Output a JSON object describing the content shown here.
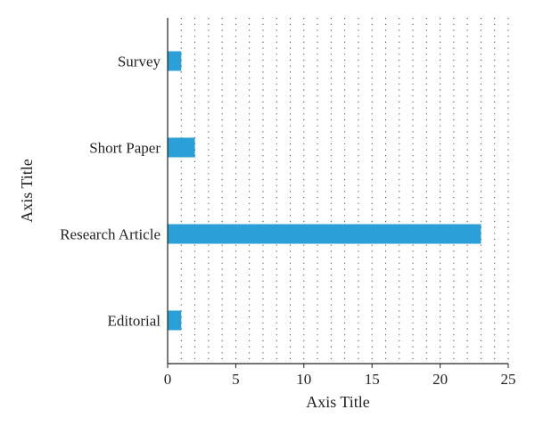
{
  "chart_data": {
    "type": "bar",
    "orientation": "horizontal",
    "categories": [
      "Editorial",
      "Research Article",
      "Short Paper",
      "Survey"
    ],
    "values": [
      1,
      23,
      2,
      1
    ],
    "xlabel": "Axis Title",
    "ylabel": "Axis Title",
    "xlim": [
      0,
      25
    ],
    "xticks": [
      0,
      5,
      10,
      15,
      20,
      25
    ],
    "grid": "dotted vertical",
    "bar_color": "#2a9fd8",
    "legend": "none"
  }
}
